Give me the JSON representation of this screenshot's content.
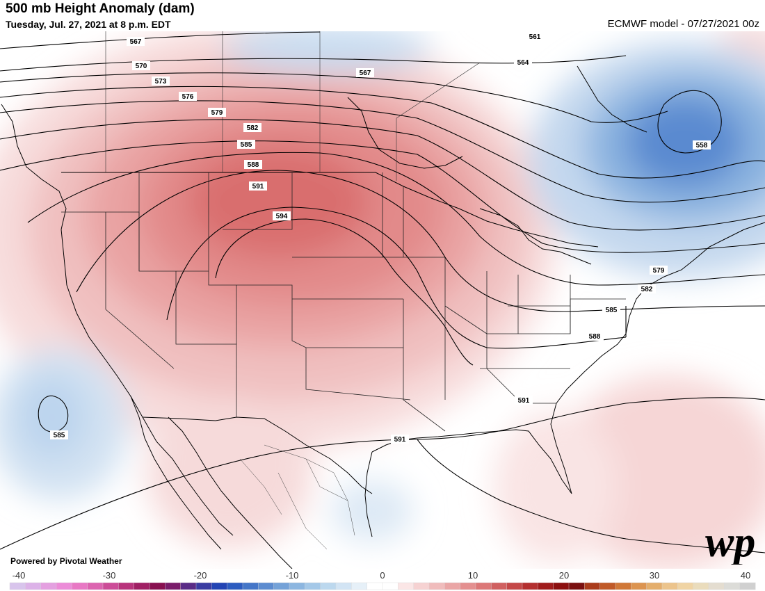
{
  "header": {
    "title": "500 mb Height Anomaly (dam)",
    "subtitle": "Tuesday, Jul. 27, 2021 at 8 p.m. EDT",
    "model": "ECMWF model - 07/27/2021 00z"
  },
  "credit": "Powered by Pivotal Weather",
  "logo_text": "wp",
  "contour_labels": [
    "567",
    "570",
    "573",
    "576",
    "579",
    "582",
    "585",
    "588",
    "591",
    "594",
    "561",
    "564",
    "567",
    "558",
    "579",
    "582",
    "585",
    "588",
    "591",
    "591",
    "585"
  ],
  "colorbar": {
    "ticks": [
      "-40",
      "-30",
      "-20",
      "-10",
      "0",
      "10",
      "20",
      "30",
      "40"
    ],
    "colors": [
      "#d8c4ec",
      "#dcb2e8",
      "#e4a0e0",
      "#ec8cd8",
      "#e878c4",
      "#dc64b0",
      "#cc4c98",
      "#b8347c",
      "#a02064",
      "#881050",
      "#7a1c6a",
      "#5a2c86",
      "#3a3ca2",
      "#2244b4",
      "#2c5cc0",
      "#4476c8",
      "#5c8cd0",
      "#74a2d8",
      "#8cb6e0",
      "#a4c8e8",
      "#bcd8ee",
      "#d2e4f4",
      "#e6f0f8",
      "#ffffff",
      "#ffffff",
      "#fbe6e6",
      "#f6d2d2",
      "#f0bcbc",
      "#eaa6a6",
      "#e49090",
      "#dc7878",
      "#d06060",
      "#c44848",
      "#b43030",
      "#a01c1c",
      "#8c1010",
      "#7a1010",
      "#aa3c1c",
      "#c05a28",
      "#d07838",
      "#dc9450",
      "#e4ae6c",
      "#ecc48c",
      "#f0d4a4",
      "#eadcbc",
      "#e4ddd0",
      "#dcdcd8",
      "#d0d0d0"
    ]
  }
}
